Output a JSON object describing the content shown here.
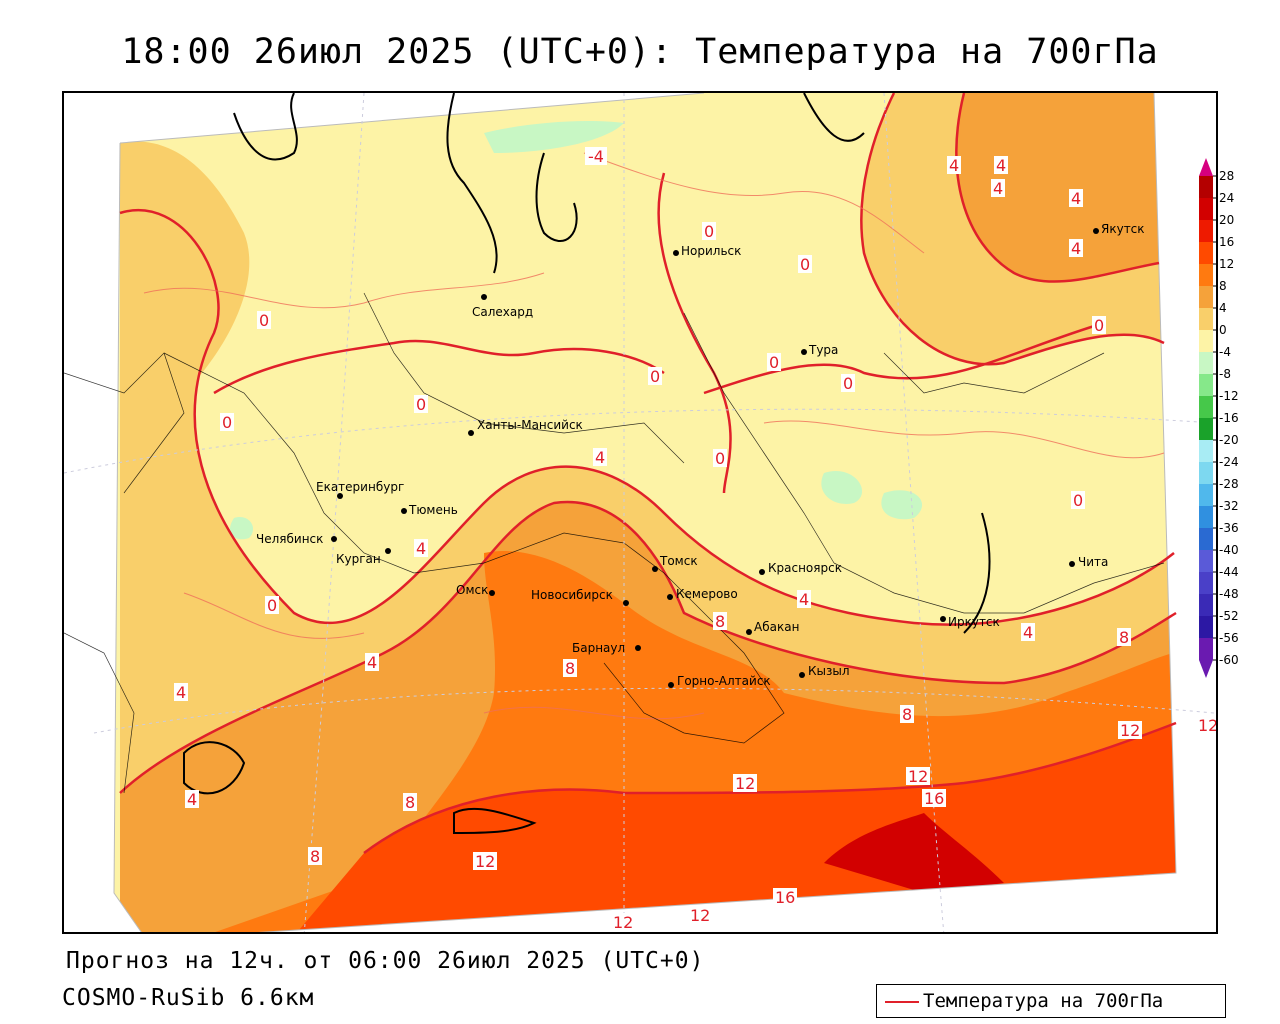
{
  "title": "18:00 26июл 2025 (UTC+0): Температура на 700гПа",
  "footer": {
    "forecast": "Прогноз на 12ч. от 06:00 26июл 2025 (UTC+0)",
    "model": "COSMO-RuSib 6.6км"
  },
  "legend": {
    "label": "Температура на 700гПа",
    "line_color": "#e0202a"
  },
  "colorbar": {
    "levels": [
      28,
      24,
      20,
      16,
      12,
      8,
      4,
      0,
      -4,
      -8,
      -12,
      -16,
      -20,
      -24,
      -28,
      -32,
      -36,
      -40,
      -44,
      -48,
      -52,
      -56,
      -60
    ],
    "colors": [
      "#d6007f",
      "#b40000",
      "#d20000",
      "#ee1a00",
      "#ff4a00",
      "#ff7a10",
      "#f5a23a",
      "#f9cf6a",
      "#fdf3a6",
      "#c8f7c4",
      "#86e88a",
      "#46c84a",
      "#1aa22a",
      "#a8ecf4",
      "#7dd8f0",
      "#50b8ec",
      "#3090e0",
      "#2a6ad2",
      "#5a5ad8",
      "#4a40c8",
      "#3a2ab6",
      "#2c18a4",
      "#6a1ab0"
    ]
  },
  "cities": [
    {
      "name": "Норильск"
    },
    {
      "name": "Якутск"
    },
    {
      "name": "Салехард"
    },
    {
      "name": "Тура"
    },
    {
      "name": "Ханты-Мансийск"
    },
    {
      "name": "Екатеринбург"
    },
    {
      "name": "Тюмень"
    },
    {
      "name": "Челябинск"
    },
    {
      "name": "Курган"
    },
    {
      "name": "Омск"
    },
    {
      "name": "Новосибирск"
    },
    {
      "name": "Томск"
    },
    {
      "name": "Кемерово"
    },
    {
      "name": "Красноярск"
    },
    {
      "name": "Абакан"
    },
    {
      "name": "Барнаул"
    },
    {
      "name": "Горно-Алтайск"
    },
    {
      "name": "Кызыл"
    },
    {
      "name": "Иркутск"
    },
    {
      "name": "Чита"
    }
  ],
  "isotherm_labels": [
    {
      "text": "-4"
    },
    {
      "text": "4"
    },
    {
      "text": "4"
    },
    {
      "text": "4"
    },
    {
      "text": "4"
    },
    {
      "text": "4"
    },
    {
      "text": "0"
    },
    {
      "text": "0"
    },
    {
      "text": "0"
    },
    {
      "text": "0"
    },
    {
      "text": "0"
    },
    {
      "text": "0"
    },
    {
      "text": "0"
    },
    {
      "text": "0"
    },
    {
      "text": "0"
    },
    {
      "text": "0"
    },
    {
      "text": "0"
    },
    {
      "text": "0"
    },
    {
      "text": "4"
    },
    {
      "text": "4"
    },
    {
      "text": "4"
    },
    {
      "text": "4"
    },
    {
      "text": "4"
    },
    {
      "text": "4"
    },
    {
      "text": "4"
    },
    {
      "text": "8"
    },
    {
      "text": "8"
    },
    {
      "text": "8"
    },
    {
      "text": "8"
    },
    {
      "text": "8"
    },
    {
      "text": "8"
    },
    {
      "text": "12"
    },
    {
      "text": "12"
    },
    {
      "text": "12"
    },
    {
      "text": "12"
    },
    {
      "text": "12"
    },
    {
      "text": "12"
    },
    {
      "text": "16"
    },
    {
      "text": "16"
    },
    {
      "text": "12"
    }
  ]
}
